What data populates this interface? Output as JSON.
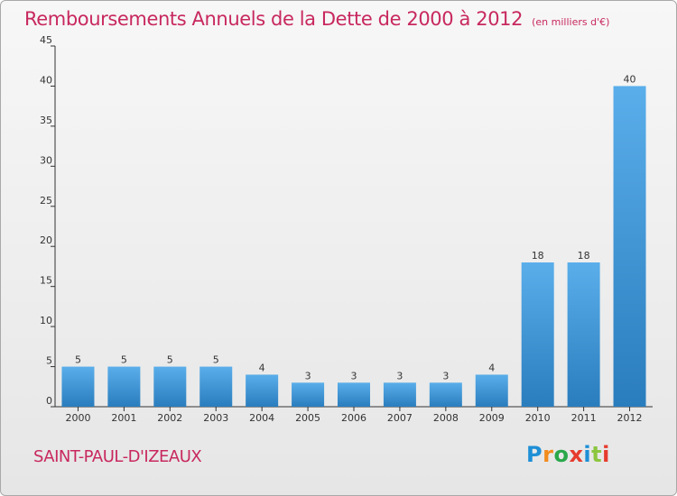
{
  "title": "Remboursements Annuels de la Dette de 2000 à 2012",
  "unit_note": "(en milliers d'€)",
  "town": "SAINT-PAUL-D'IZEAUX",
  "logo": {
    "text": "Proxiti",
    "letter_colors": [
      "#1e8fd6",
      "#f28c1e",
      "#2aa84a",
      "#e63b2e",
      "#1e8fd6",
      "#8cc63f",
      "#e63b2e"
    ]
  },
  "colors": {
    "title": "#c8285f",
    "bar_light": "#5aaeea",
    "bar_dark": "#2a7dbd",
    "axis": "#333333"
  },
  "chart_data": {
    "type": "bar",
    "categories": [
      "2000",
      "2001",
      "2002",
      "2003",
      "2004",
      "2005",
      "2006",
      "2007",
      "2008",
      "2009",
      "2010",
      "2011",
      "2012"
    ],
    "values": [
      5,
      5,
      5,
      5,
      4,
      3,
      3,
      3,
      3,
      4,
      18,
      18,
      40
    ],
    "value_labels": [
      "5",
      "5",
      "5",
      "5",
      "4",
      "3",
      "3",
      "3",
      "3",
      "4",
      "18",
      "18",
      "40"
    ],
    "ylim": [
      0,
      45
    ],
    "yticks": [
      0,
      5,
      10,
      15,
      20,
      25,
      30,
      35,
      40,
      45
    ],
    "ytick_labels": [
      "0",
      "5",
      "10",
      "15",
      "20",
      "25",
      "30",
      "35",
      "40",
      "45"
    ],
    "grid": false
  }
}
